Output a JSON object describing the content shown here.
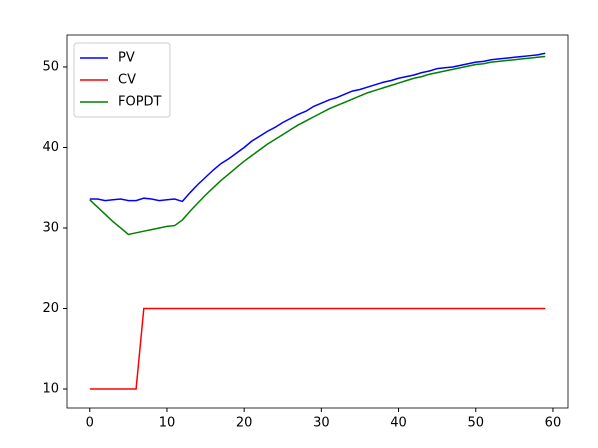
{
  "chart_data": {
    "type": "line",
    "x": [
      0,
      1,
      2,
      3,
      4,
      5,
      6,
      7,
      8,
      9,
      10,
      11,
      12,
      13,
      14,
      15,
      16,
      17,
      18,
      19,
      20,
      21,
      22,
      23,
      24,
      25,
      26,
      27,
      28,
      29,
      30,
      31,
      32,
      33,
      34,
      35,
      36,
      37,
      38,
      39,
      40,
      41,
      42,
      43,
      44,
      45,
      46,
      47,
      48,
      49,
      50,
      51,
      52,
      53,
      54,
      55,
      56,
      57,
      58,
      59
    ],
    "series": [
      {
        "name": "PV",
        "color": "#0000ff",
        "values": [
          33.6,
          33.6,
          33.4,
          33.5,
          33.6,
          33.4,
          33.4,
          33.7,
          33.6,
          33.4,
          33.5,
          33.6,
          33.3,
          34.4,
          35.4,
          36.3,
          37.2,
          38.0,
          38.6,
          39.3,
          40.0,
          40.8,
          41.4,
          42.0,
          42.5,
          43.1,
          43.6,
          44.1,
          44.5,
          45.1,
          45.5,
          45.9,
          46.2,
          46.6,
          47.0,
          47.2,
          47.5,
          47.8,
          48.1,
          48.3,
          48.6,
          48.8,
          49.0,
          49.3,
          49.5,
          49.8,
          49.9,
          50.0,
          50.2,
          50.4,
          50.6,
          50.7,
          50.9,
          51.0,
          51.1,
          51.2,
          51.3,
          51.4,
          51.5,
          51.7
        ]
      },
      {
        "name": "CV",
        "color": "#ff0000",
        "values": [
          10,
          10,
          10,
          10,
          10,
          10,
          10,
          20,
          20,
          20,
          20,
          20,
          20,
          20,
          20,
          20,
          20,
          20,
          20,
          20,
          20,
          20,
          20,
          20,
          20,
          20,
          20,
          20,
          20,
          20,
          20,
          20,
          20,
          20,
          20,
          20,
          20,
          20,
          20,
          20,
          20,
          20,
          20,
          20,
          20,
          20,
          20,
          20,
          20,
          20,
          20,
          20,
          20,
          20,
          20,
          20,
          20,
          20,
          20,
          20
        ]
      },
      {
        "name": "FOPDT",
        "color": "#008000",
        "values": [
          33.5,
          32.6,
          31.7,
          30.8,
          30.0,
          29.2,
          29.4,
          29.6,
          29.8,
          30.0,
          30.2,
          30.3,
          31.0,
          32.1,
          33.1,
          34.1,
          35.0,
          35.9,
          36.7,
          37.5,
          38.3,
          39.0,
          39.7,
          40.4,
          41.0,
          41.6,
          42.2,
          42.8,
          43.3,
          43.8,
          44.3,
          44.8,
          45.2,
          45.6,
          46.0,
          46.4,
          46.8,
          47.1,
          47.4,
          47.7,
          48.0,
          48.3,
          48.6,
          48.8,
          49.1,
          49.3,
          49.5,
          49.7,
          49.9,
          50.1,
          50.3,
          50.4,
          50.6,
          50.7,
          50.8,
          50.9,
          51.0,
          51.1,
          51.2,
          51.3
        ]
      }
    ],
    "xlim": [
      -2.95,
      61.95
    ],
    "xticks": [
      0,
      10,
      20,
      30,
      40,
      50,
      60
    ],
    "ylim": [
      7.64,
      53.97
    ],
    "yticks": [
      10,
      20,
      30,
      40,
      50
    ],
    "grid": false,
    "legend": "upper-left"
  }
}
